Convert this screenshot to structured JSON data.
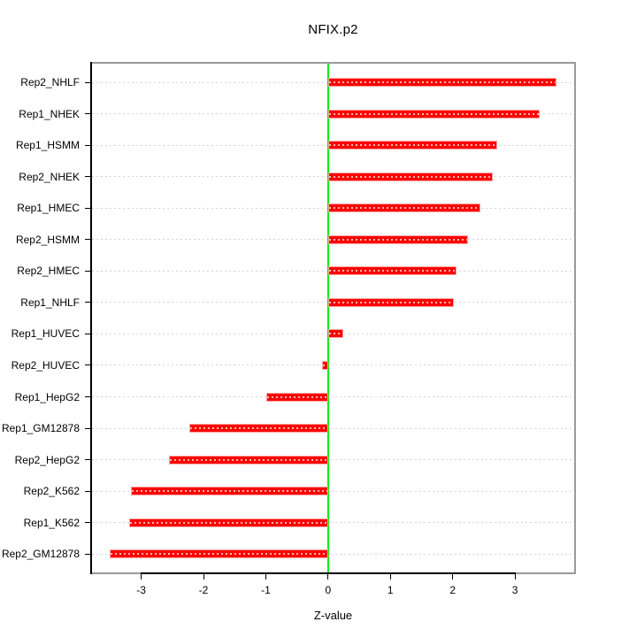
{
  "title": "NFIX.p2",
  "xlabel": "Z-value",
  "chart_data": {
    "type": "bar",
    "orientation": "horizontal",
    "title": "NFIX.p2",
    "xlabel": "Z-value",
    "categories": [
      "Rep2_NHLF",
      "Rep1_NHEK",
      "Rep1_HSMM",
      "Rep2_NHEK",
      "Rep1_HMEC",
      "Rep2_HSMM",
      "Rep2_HMEC",
      "Rep1_NHLF",
      "Rep1_HUVEC",
      "Rep2_HUVEC",
      "Rep1_HepG2",
      "Rep1_GM12878",
      "Rep2_HepG2",
      "Rep2_K562",
      "Rep1_K562",
      "Rep2_GM12878"
    ],
    "values": [
      3.66,
      3.39,
      2.71,
      2.65,
      2.45,
      2.25,
      2.06,
      2.02,
      0.25,
      -0.1,
      -0.99,
      -2.23,
      -2.56,
      -3.16,
      -3.19,
      -3.5
    ],
    "xticks": [
      -3,
      -2,
      -1,
      0,
      1,
      2,
      3
    ],
    "xlim": [
      -3.79,
      3.95
    ],
    "grid": true,
    "zero_line": true,
    "colors": {
      "bar": "#fa0400",
      "bar_border": "#ffa3a3",
      "zero_line": "#00ee00",
      "grid": "#d4d4d4",
      "box": "#9a9a9a",
      "axis": "#000000",
      "text": "#000000"
    }
  }
}
